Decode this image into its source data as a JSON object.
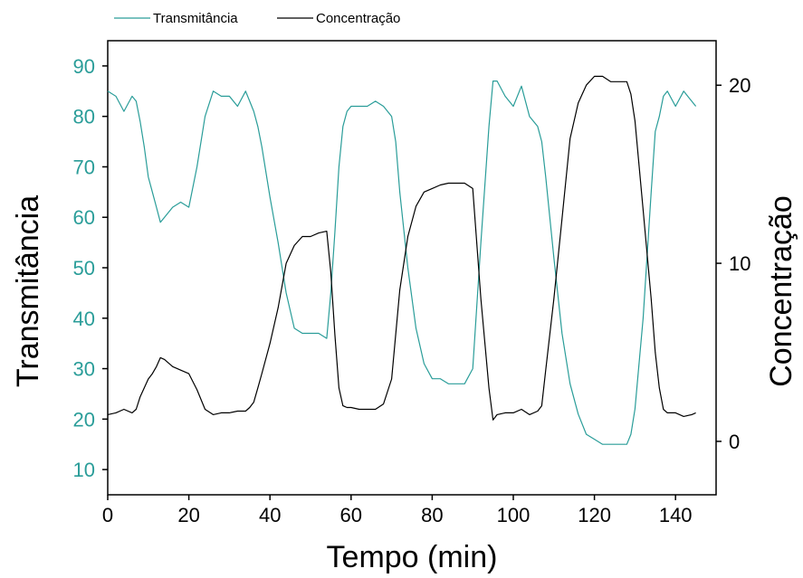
{
  "chart_data": {
    "type": "line",
    "title": "",
    "xlabel": "Tempo (min)",
    "ylabel_left": "Transmitância",
    "ylabel_right": "Concentração",
    "xlim": [
      0,
      150
    ],
    "ylim_left": [
      5,
      95
    ],
    "ylim_right": [
      -3,
      22.5
    ],
    "x_ticks": [
      0,
      20,
      40,
      60,
      80,
      100,
      120,
      140
    ],
    "y_ticks_left": [
      10,
      20,
      30,
      40,
      50,
      60,
      70,
      80,
      90
    ],
    "y_ticks_right": [
      0,
      10,
      20
    ],
    "grid": false,
    "legend_position": "top-left",
    "colors": {
      "transmitancia": "#2a9d99",
      "concentracao": "#000000",
      "axis": "#000000"
    },
    "series": [
      {
        "name": "Transmitância",
        "axis": "left",
        "x": [
          0,
          2,
          4,
          6,
          7,
          8,
          9,
          10,
          11,
          12,
          13,
          14,
          16,
          18,
          20,
          22,
          24,
          26,
          28,
          30,
          32,
          34,
          35,
          36,
          37,
          38,
          40,
          42,
          44,
          46,
          48,
          50,
          52,
          54,
          55,
          56,
          57,
          58,
          59,
          60,
          62,
          64,
          66,
          68,
          70,
          71,
          72,
          74,
          76,
          78,
          80,
          82,
          84,
          86,
          88,
          90,
          92,
          94,
          95,
          96,
          98,
          100,
          102,
          104,
          106,
          107,
          108,
          109,
          110,
          112,
          114,
          116,
          118,
          120,
          122,
          124,
          126,
          128,
          129,
          130,
          132,
          134,
          135,
          136,
          137,
          138,
          140,
          142,
          144,
          145
        ],
        "values": [
          85,
          84,
          81,
          84,
          83,
          79,
          74,
          68,
          65,
          62,
          59,
          60,
          62,
          63,
          62,
          70,
          80,
          85,
          84,
          84,
          82,
          85,
          83,
          81,
          78,
          74,
          64,
          55,
          45,
          38,
          37,
          37,
          37,
          36,
          45,
          57,
          70,
          78,
          81,
          82,
          82,
          82,
          83,
          82,
          80,
          75,
          65,
          50,
          38,
          31,
          28,
          28,
          27,
          27,
          27,
          30,
          55,
          78,
          87,
          87,
          84,
          82,
          86,
          80,
          78,
          75,
          68,
          60,
          52,
          37,
          27,
          21,
          17,
          16,
          15,
          15,
          15,
          15,
          17,
          22,
          40,
          65,
          77,
          80,
          84,
          85,
          82,
          85,
          83,
          82
        ]
      },
      {
        "name": "Concentração",
        "axis": "right",
        "x": [
          0,
          2,
          4,
          6,
          7,
          8,
          9,
          10,
          11,
          12,
          13,
          14,
          16,
          18,
          20,
          22,
          24,
          26,
          28,
          30,
          32,
          34,
          35,
          36,
          37,
          38,
          40,
          42,
          44,
          46,
          48,
          50,
          52,
          54,
          55,
          56,
          57,
          58,
          59,
          60,
          62,
          64,
          66,
          68,
          70,
          71,
          72,
          74,
          76,
          78,
          80,
          82,
          84,
          86,
          88,
          90,
          92,
          94,
          95,
          96,
          98,
          100,
          102,
          104,
          106,
          107,
          108,
          109,
          110,
          112,
          114,
          116,
          118,
          120,
          122,
          124,
          126,
          128,
          129,
          130,
          132,
          134,
          135,
          136,
          137,
          138,
          140,
          142,
          144,
          145
        ],
        "values": [
          1.5,
          1.6,
          1.8,
          1.6,
          1.8,
          2.5,
          3.0,
          3.5,
          3.8,
          4.2,
          4.7,
          4.6,
          4.2,
          4.0,
          3.8,
          2.9,
          1.8,
          1.5,
          1.6,
          1.6,
          1.7,
          1.7,
          1.9,
          2.2,
          3.0,
          3.8,
          5.5,
          7.5,
          10.0,
          11.0,
          11.5,
          11.5,
          11.7,
          11.8,
          9.5,
          6.0,
          3.0,
          2.0,
          1.9,
          1.9,
          1.8,
          1.8,
          1.8,
          2.1,
          3.5,
          6.0,
          8.5,
          11.5,
          13.2,
          14.0,
          14.2,
          14.4,
          14.5,
          14.5,
          14.5,
          14.2,
          8.0,
          3.0,
          1.2,
          1.5,
          1.6,
          1.6,
          1.8,
          1.5,
          1.7,
          2.0,
          4.0,
          6.0,
          8.0,
          12.5,
          17.0,
          19.0,
          20.0,
          20.5,
          20.5,
          20.2,
          20.2,
          20.2,
          19.5,
          18.0,
          13.0,
          8.0,
          5.0,
          3.0,
          1.8,
          1.6,
          1.6,
          1.4,
          1.5,
          1.6
        ]
      }
    ]
  }
}
